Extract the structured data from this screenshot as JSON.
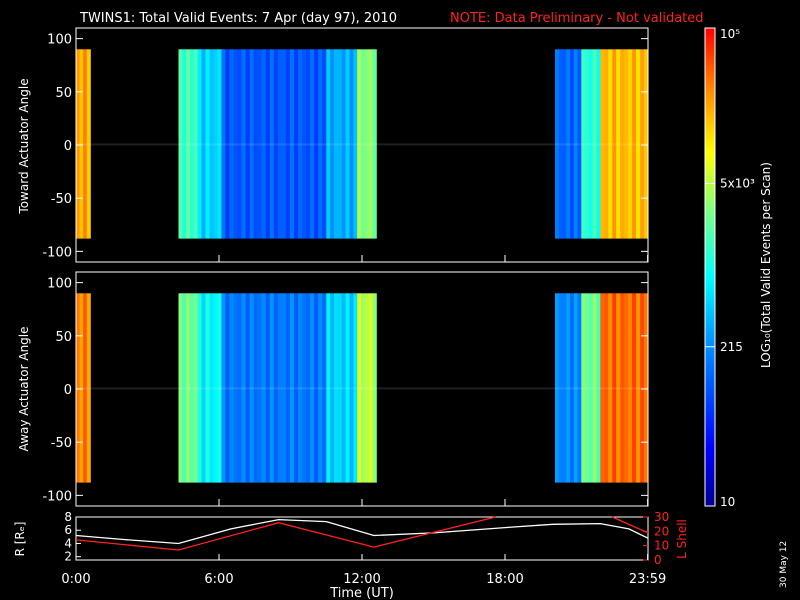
{
  "header": {
    "title": "TWINS1: Total Valid Events:  7 Apr (day  97), 2010",
    "note": "NOTE: Data Preliminary - Not validated"
  },
  "colorbar": {
    "label": "LOG₁₀(Total Valid  Events per Scan)",
    "ticks": [
      {
        "label": "10⁵",
        "value": 100000
      },
      {
        "label": "5x10³",
        "value": 5000
      },
      {
        "label": "215",
        "value": 215
      },
      {
        "label": "10",
        "value": 10
      }
    ],
    "range": [
      10,
      100000
    ]
  },
  "x_axis": {
    "label": "Time (UT)",
    "ticks": [
      {
        "label": "0:00",
        "hour": 0
      },
      {
        "label": "6:00",
        "hour": 6
      },
      {
        "label": "12:00",
        "hour": 12
      },
      {
        "label": "18:00",
        "hour": 18
      },
      {
        "label": "23:59",
        "hour": 23.983
      }
    ],
    "range_hours": [
      0,
      24
    ]
  },
  "side_stamp": "30 May 12",
  "chart_data": [
    {
      "type": "heatmap",
      "name": "toward",
      "ylabel": "Toward Actuator Angle",
      "ylim": [
        -110,
        110
      ],
      "yticks": [
        100,
        50,
        0,
        -50,
        -100
      ],
      "angle_range": [
        -88,
        90
      ],
      "segments": [
        {
          "start_h": 0.0,
          "end_h": 0.6,
          "log_level": 4.35
        },
        {
          "start_h": 4.3,
          "end_h": 5.1,
          "log_level": 3.2
        },
        {
          "start_h": 5.1,
          "end_h": 6.1,
          "log_level": 2.7
        },
        {
          "start_h": 6.1,
          "end_h": 10.5,
          "log_level": 2.0
        },
        {
          "start_h": 10.5,
          "end_h": 11.8,
          "log_level": 2.5
        },
        {
          "start_h": 11.8,
          "end_h": 12.6,
          "log_level": 3.5
        },
        {
          "start_h": 20.1,
          "end_h": 21.2,
          "log_level": 2.1
        },
        {
          "start_h": 21.2,
          "end_h": 22.0,
          "log_level": 3.1
        },
        {
          "start_h": 22.0,
          "end_h": 24.0,
          "log_level": 4.25
        }
      ]
    },
    {
      "type": "heatmap",
      "name": "away",
      "ylabel": "Away Actuator Angle",
      "ylim": [
        -110,
        110
      ],
      "yticks": [
        100,
        50,
        0,
        -50,
        -100
      ],
      "angle_range": [
        -88,
        90
      ],
      "segments": [
        {
          "start_h": 0.0,
          "end_h": 0.6,
          "log_level": 4.5
        },
        {
          "start_h": 4.3,
          "end_h": 5.1,
          "log_level": 3.4
        },
        {
          "start_h": 5.1,
          "end_h": 6.1,
          "log_level": 2.9
        },
        {
          "start_h": 6.1,
          "end_h": 10.5,
          "log_level": 2.2
        },
        {
          "start_h": 10.5,
          "end_h": 11.8,
          "log_level": 2.7
        },
        {
          "start_h": 11.8,
          "end_h": 12.6,
          "log_level": 3.7
        },
        {
          "start_h": 20.1,
          "end_h": 21.2,
          "log_level": 2.3
        },
        {
          "start_h": 21.2,
          "end_h": 22.0,
          "log_level": 3.4
        },
        {
          "start_h": 22.0,
          "end_h": 24.0,
          "log_level": 4.6
        }
      ]
    },
    {
      "type": "line",
      "name": "orbit",
      "ylabel_left": "R [Rₑ]",
      "ylabel_right": "L Shell",
      "ylim_left": [
        1.5,
        8
      ],
      "ylim_right": [
        0,
        30
      ],
      "yticks_left": [
        8,
        6,
        4,
        2
      ],
      "yticks_right": [
        30,
        20,
        10,
        0
      ],
      "series": [
        {
          "name": "R [RE]",
          "color": "#ffffff",
          "axis": "left",
          "x": [
            0,
            2,
            4.3,
            6.5,
            8.5,
            10.5,
            12.5,
            15,
            18,
            20,
            22,
            23.2,
            24
          ],
          "y": [
            5.2,
            4.6,
            4.0,
            6.2,
            7.6,
            7.3,
            5.2,
            5.6,
            6.4,
            6.9,
            7.0,
            6.2,
            4.8
          ]
        },
        {
          "name": "L Shell",
          "color": "#ff2020",
          "axis": "right",
          "x": [
            0,
            4.3,
            8.5,
            12.5,
            17.6
          ],
          "y": [
            14,
            7,
            26,
            9,
            31
          ]
        },
        {
          "name": "L Shell (late)",
          "color": "#ff2020",
          "axis": "right",
          "x": [
            22.5,
            24
          ],
          "y": [
            31,
            19
          ]
        }
      ]
    }
  ]
}
